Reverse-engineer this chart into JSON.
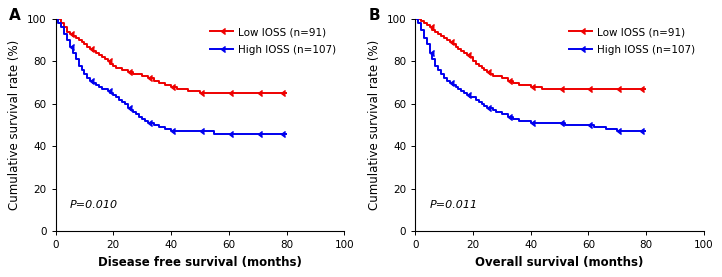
{
  "panel_A": {
    "title": "A",
    "xlabel": "Disease free survival (months)",
    "ylabel": "Cumulative survival rate (%)",
    "pvalue": "P=0.010",
    "low_color": "#EE0000",
    "high_color": "#0000EE",
    "low_label": "Low IOSS (n=91)",
    "high_label": "High IOSS (n=107)",
    "low_x": [
      0,
      1,
      2,
      3,
      4,
      5,
      6,
      7,
      8,
      9,
      10,
      11,
      12,
      13,
      14,
      15,
      16,
      17,
      18,
      19,
      20,
      21,
      22,
      23,
      24,
      25,
      26,
      27,
      28,
      30,
      32,
      34,
      36,
      38,
      40,
      42,
      44,
      46,
      48,
      50,
      55,
      60,
      65,
      70,
      75,
      80
    ],
    "low_y": [
      100,
      100,
      98,
      96,
      94,
      93,
      92,
      91,
      90,
      89,
      88,
      87,
      86,
      85,
      84,
      83,
      82,
      81,
      80,
      79,
      78,
      77,
      77,
      76,
      76,
      75,
      75,
      74,
      74,
      73,
      72,
      71,
      70,
      69,
      68,
      67,
      67,
      66,
      66,
      65,
      65,
      65,
      65,
      65,
      65,
      65
    ],
    "high_x": [
      0,
      1,
      2,
      3,
      4,
      5,
      6,
      7,
      8,
      9,
      10,
      11,
      12,
      13,
      14,
      15,
      16,
      17,
      18,
      19,
      20,
      21,
      22,
      23,
      24,
      25,
      26,
      27,
      28,
      29,
      30,
      31,
      32,
      34,
      36,
      38,
      40,
      42,
      44,
      46,
      48,
      50,
      55,
      60,
      62,
      64,
      66,
      68,
      70,
      75,
      80
    ],
    "high_y": [
      100,
      98,
      96,
      93,
      90,
      87,
      84,
      81,
      78,
      76,
      74,
      72,
      71,
      70,
      69,
      68,
      67,
      67,
      66,
      65,
      64,
      63,
      62,
      61,
      60,
      58,
      57,
      56,
      55,
      54,
      53,
      52,
      51,
      50,
      49,
      48,
      47,
      47,
      47,
      47,
      47,
      47,
      46,
      46,
      46,
      46,
      46,
      46,
      46,
      46,
      46
    ]
  },
  "panel_B": {
    "title": "B",
    "xlabel": "Overall survival (months)",
    "ylabel": "Cumulative survival rate (%)",
    "pvalue": "P=0.011",
    "low_color": "#EE0000",
    "high_color": "#0000EE",
    "low_label": "Low IOSS (n=91)",
    "high_label": "High IOSS (n=107)",
    "low_x": [
      0,
      1,
      2,
      3,
      4,
      5,
      6,
      7,
      8,
      9,
      10,
      11,
      12,
      13,
      14,
      15,
      16,
      17,
      18,
      19,
      20,
      21,
      22,
      23,
      24,
      25,
      26,
      27,
      28,
      30,
      32,
      34,
      36,
      38,
      40,
      42,
      44,
      46,
      48,
      50,
      55,
      60,
      65,
      70,
      75,
      80
    ],
    "low_y": [
      100,
      100,
      99,
      98,
      97,
      96,
      95,
      94,
      93,
      92,
      91,
      90,
      89,
      88,
      87,
      86,
      85,
      84,
      83,
      82,
      80,
      79,
      78,
      77,
      76,
      75,
      74,
      73,
      73,
      72,
      71,
      70,
      69,
      69,
      68,
      68,
      67,
      67,
      67,
      67,
      67,
      67,
      67,
      67,
      67,
      67
    ],
    "high_x": [
      0,
      1,
      2,
      3,
      4,
      5,
      6,
      7,
      8,
      9,
      10,
      11,
      12,
      13,
      14,
      15,
      16,
      17,
      18,
      19,
      20,
      21,
      22,
      23,
      24,
      25,
      26,
      27,
      28,
      30,
      32,
      34,
      36,
      38,
      40,
      42,
      44,
      46,
      48,
      50,
      52,
      54,
      56,
      58,
      60,
      62,
      64,
      66,
      68,
      70,
      72,
      74,
      76,
      78,
      80
    ],
    "high_y": [
      100,
      98,
      95,
      91,
      88,
      84,
      81,
      78,
      76,
      74,
      72,
      71,
      70,
      69,
      68,
      67,
      66,
      65,
      64,
      63,
      63,
      62,
      61,
      60,
      59,
      58,
      58,
      57,
      56,
      55,
      54,
      53,
      52,
      52,
      51,
      51,
      51,
      51,
      51,
      51,
      50,
      50,
      50,
      50,
      50,
      49,
      49,
      48,
      48,
      47,
      47,
      47,
      47,
      47,
      47
    ]
  },
  "xlim": [
    0,
    100
  ],
  "ylim": [
    0,
    100
  ],
  "xticks": [
    0,
    20,
    40,
    60,
    80,
    100
  ],
  "yticks": [
    0,
    20,
    40,
    60,
    80,
    100
  ],
  "tick_fontsize": 7.5,
  "label_fontsize": 8.5,
  "legend_fontsize": 7.5,
  "title_fontsize": 11,
  "linewidth": 1.4,
  "marker_size": 4
}
